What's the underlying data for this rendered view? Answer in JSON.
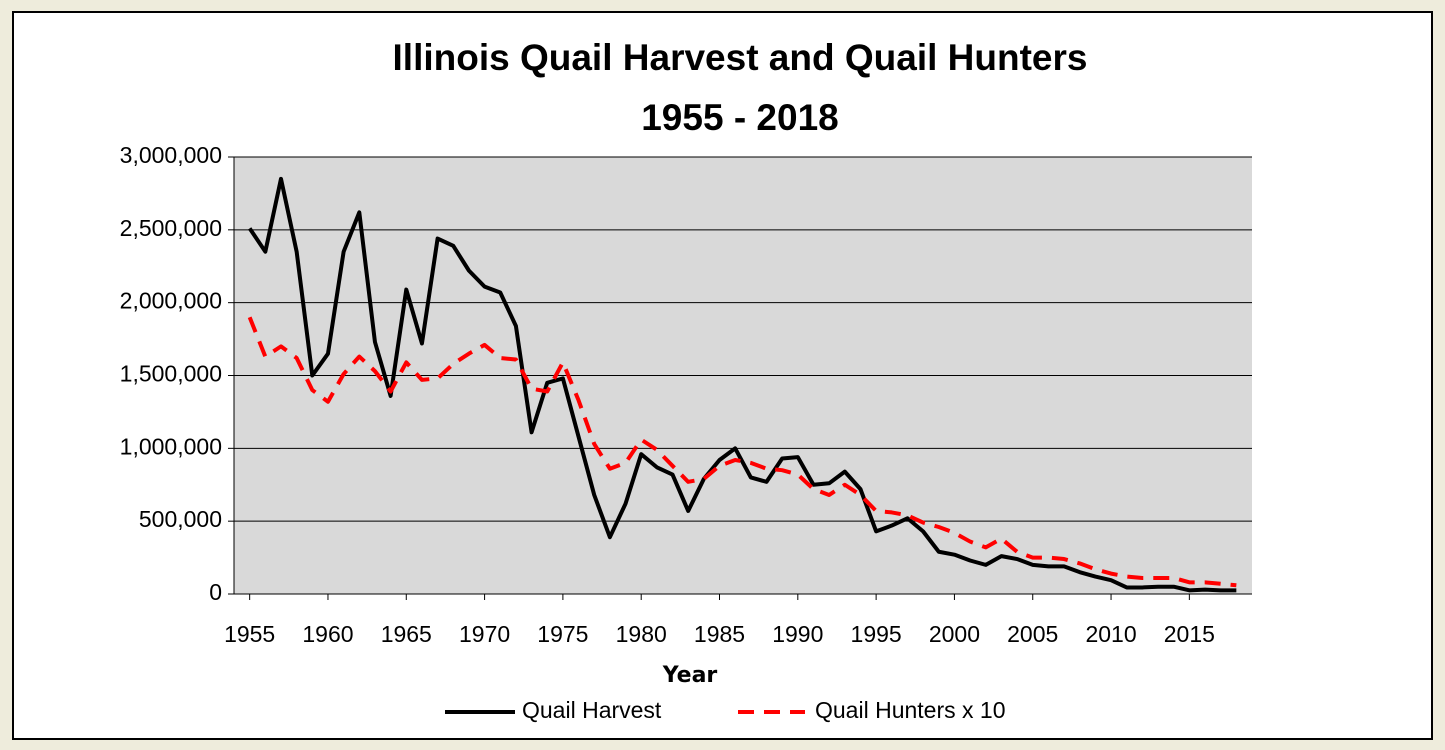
{
  "chart_data": {
    "type": "line",
    "title": "Illinois Quail Harvest and Quail Hunters",
    "subtitle": "1955 - 2018",
    "x_label": "Year",
    "x": [
      1955,
      1956,
      1957,
      1958,
      1959,
      1960,
      1961,
      1962,
      1963,
      1964,
      1965,
      1966,
      1967,
      1968,
      1969,
      1970,
      1971,
      1972,
      1973,
      1974,
      1975,
      1976,
      1977,
      1978,
      1979,
      1980,
      1981,
      1982,
      1983,
      1984,
      1985,
      1986,
      1987,
      1988,
      1989,
      1990,
      1991,
      1992,
      1993,
      1994,
      1995,
      1996,
      1997,
      1998,
      1999,
      2000,
      2001,
      2002,
      2003,
      2004,
      2005,
      2006,
      2007,
      2008,
      2009,
      2010,
      2011,
      2012,
      2013,
      2014,
      2015,
      2016,
      2017,
      2018
    ],
    "series": [
      {
        "name": "Quail Harvest",
        "color": "#000000",
        "dash": false,
        "values": [
          2510000,
          2350000,
          2850000,
          2350000,
          1500000,
          1650000,
          2350000,
          2620000,
          1730000,
          1360000,
          2090000,
          1720000,
          2440000,
          2390000,
          2220000,
          2110000,
          2070000,
          1840000,
          1110000,
          1450000,
          1480000,
          1080000,
          680000,
          390000,
          620000,
          960000,
          870000,
          820000,
          570000,
          790000,
          920000,
          1000000,
          800000,
          770000,
          930000,
          940000,
          750000,
          760000,
          840000,
          720000,
          430000,
          470000,
          520000,
          430000,
          290000,
          270000,
          230000,
          200000,
          260000,
          240000,
          200000,
          190000,
          190000,
          150000,
          120000,
          95000,
          45000,
          45000,
          50000,
          50000,
          25000,
          30000,
          25000,
          25000
        ]
      },
      {
        "name": "Quail Hunters x 10",
        "color": "#ff0000",
        "dash": true,
        "values": [
          1900000,
          1630000,
          1700000,
          1620000,
          1400000,
          1320000,
          1510000,
          1630000,
          1530000,
          1390000,
          1590000,
          1470000,
          1480000,
          1580000,
          1650000,
          1710000,
          1620000,
          1610000,
          1410000,
          1390000,
          1590000,
          1330000,
          1030000,
          860000,
          900000,
          1060000,
          990000,
          880000,
          770000,
          790000,
          880000,
          920000,
          900000,
          860000,
          850000,
          820000,
          720000,
          680000,
          750000,
          680000,
          570000,
          560000,
          540000,
          490000,
          460000,
          420000,
          360000,
          320000,
          380000,
          290000,
          250000,
          250000,
          240000,
          210000,
          170000,
          140000,
          120000,
          110000,
          110000,
          110000,
          80000,
          80000,
          70000,
          60000
        ]
      }
    ],
    "xlim": [
      1954,
      2019
    ],
    "xticks": [
      1955,
      1960,
      1965,
      1970,
      1975,
      1980,
      1985,
      1990,
      1995,
      2000,
      2005,
      2010,
      2015
    ],
    "ylim": [
      0,
      3000000
    ],
    "yticks": [
      0,
      {
        "value": 500000,
        "label": "500,000"
      },
      {
        "value": 1000000,
        "label": "1,000,000"
      },
      {
        "value": 1500000,
        "label": "1,500,000"
      },
      {
        "value": 2000000,
        "label": "2,000,000"
      },
      {
        "value": 2500000,
        "label": "2,500,000"
      },
      {
        "value": 3000000,
        "label": "3,000,000"
      }
    ],
    "grid": true,
    "plot_background": "#d9d9d9",
    "legend": "bottom"
  }
}
